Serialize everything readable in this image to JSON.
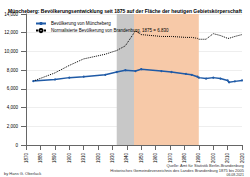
{
  "chart_data": {
    "type": "line",
    "title": "Müncheberg: Bevölkerungsentwicklung seit 1875 auf der Fläche der heutigen Gebietskörperschaft",
    "x": [
      1875,
      1890,
      1900,
      1910,
      1925,
      1933,
      1939,
      1946,
      1950,
      1964,
      1971,
      1981,
      1985,
      1989,
      1990,
      1995,
      2000,
      2005,
      2010,
      2011,
      2015,
      2020
    ],
    "series": [
      {
        "name": "Bevölkerung von Müncheberg",
        "color": "#1f5aa6",
        "marker": "circle",
        "line_style": "solid",
        "values": [
          6830,
          7000,
          7200,
          7300,
          7500,
          7800,
          8000,
          7900,
          8100,
          7900,
          7800,
          7600,
          7500,
          7300,
          7200,
          7100,
          7200,
          7100,
          6900,
          6700,
          6800,
          6900
        ]
      },
      {
        "name": "Normalisierte Bevölkerung von Brandenburg, 1875 = 6.830",
        "color": "#000000",
        "marker": "none",
        "line_style": "dotted",
        "values": [
          6830,
          7700,
          8500,
          9200,
          9700,
          10100,
          10600,
          12200,
          11800,
          11600,
          11600,
          11500,
          11500,
          11400,
          11300,
          11300,
          11900,
          11700,
          11400,
          11400,
          11600,
          11800
        ]
      }
    ],
    "periods": [
      {
        "from": 1933,
        "to": 1945,
        "color": "#c8c8c8"
      },
      {
        "from": 1945,
        "to": 1990,
        "color": "#f7c9a8"
      }
    ],
    "xlim": [
      1870,
      2020
    ],
    "xticks": [
      1870,
      1880,
      1890,
      1900,
      1910,
      1920,
      1930,
      1940,
      1950,
      1960,
      1970,
      1980,
      1990,
      2000,
      2010,
      2020
    ],
    "ylim": [
      0,
      14000
    ],
    "yticks": [
      0,
      {
        "value": 2000,
        "label": "2,000"
      },
      {
        "value": 4000,
        "label": "4,000"
      },
      {
        "value": 6000,
        "label": "6,000"
      },
      {
        "value": 8000,
        "label": "8,000"
      },
      {
        "value": 10000,
        "label": "10,000"
      },
      {
        "value": 12000,
        "label": "12,000"
      },
      {
        "value": 14000,
        "label": "14,000"
      }
    ],
    "grid": true,
    "legend": "top-left",
    "source": [
      "Quelle: Amt für Statistik Berlin-Brandenburg",
      "Historisches Gemeindeverzeichnis des Landes Brandenburg 1875 bis 2005"
    ],
    "author": "by Hans G. Oberlack",
    "date": "06.08.2021"
  }
}
